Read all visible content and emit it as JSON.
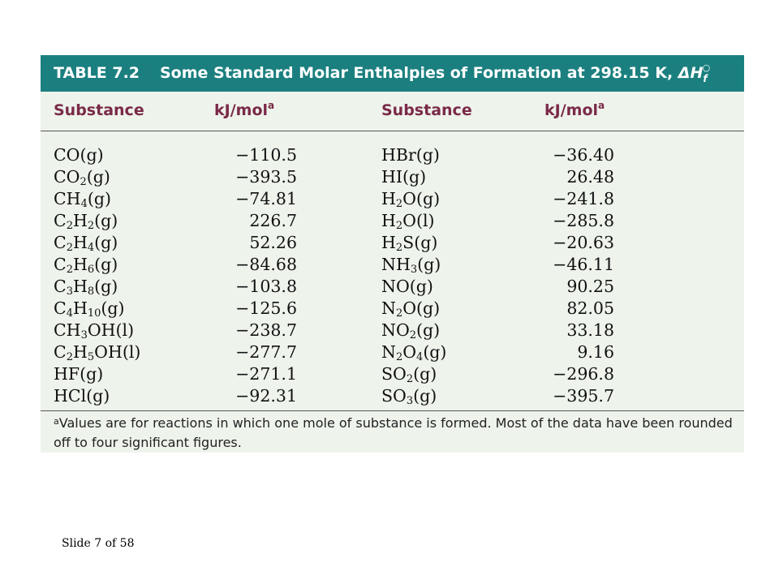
{
  "table": {
    "label": "TABLE 7.2",
    "title": "Some Standard Molar Enthalpies of Formation at 298.15 K, ",
    "title_symbol": "ΔH",
    "title_symbol_sub": "f",
    "title_symbol_sup": "○",
    "headers": {
      "substance_left": "Substance",
      "value_left": "kJ/mol",
      "value_left_sup": "a",
      "substance_right": "Substance",
      "value_right": "kJ/mol",
      "value_right_sup": "a"
    },
    "rows": [
      {
        "left": [
          {
            "t": "CO(g)"
          }
        ],
        "left_value": "−110.5",
        "right": [
          {
            "t": "HBr(g)"
          }
        ],
        "right_value": "−36.40"
      },
      {
        "left": [
          {
            "t": "CO"
          },
          {
            "s": "2"
          },
          {
            "t": "(g)"
          }
        ],
        "left_value": "−393.5",
        "right": [
          {
            "t": "HI(g)"
          }
        ],
        "right_value": "26.48"
      },
      {
        "left": [
          {
            "t": "CH"
          },
          {
            "s": "4"
          },
          {
            "t": "(g)"
          }
        ],
        "left_value": "−74.81",
        "right": [
          {
            "t": "H"
          },
          {
            "s": "2"
          },
          {
            "t": "O(g)"
          }
        ],
        "right_value": "−241.8"
      },
      {
        "left": [
          {
            "t": "C"
          },
          {
            "s": "2"
          },
          {
            "t": "H"
          },
          {
            "s": "2"
          },
          {
            "t": "(g)"
          }
        ],
        "left_value": "226.7",
        "right": [
          {
            "t": "H"
          },
          {
            "s": "2"
          },
          {
            "t": "O(l)"
          }
        ],
        "right_value": "−285.8"
      },
      {
        "left": [
          {
            "t": "C"
          },
          {
            "s": "2"
          },
          {
            "t": "H"
          },
          {
            "s": "4"
          },
          {
            "t": "(g)"
          }
        ],
        "left_value": "52.26",
        "right": [
          {
            "t": "H"
          },
          {
            "s": "2"
          },
          {
            "t": "S(g)"
          }
        ],
        "right_value": "−20.63"
      },
      {
        "left": [
          {
            "t": "C"
          },
          {
            "s": "2"
          },
          {
            "t": "H"
          },
          {
            "s": "6"
          },
          {
            "t": "(g)"
          }
        ],
        "left_value": "−84.68",
        "right": [
          {
            "t": "NH"
          },
          {
            "s": "3"
          },
          {
            "t": "(g)"
          }
        ],
        "right_value": "−46.11"
      },
      {
        "left": [
          {
            "t": "C"
          },
          {
            "s": "3"
          },
          {
            "t": "H"
          },
          {
            "s": "8"
          },
          {
            "t": "(g)"
          }
        ],
        "left_value": "−103.8",
        "right": [
          {
            "t": "NO(g)"
          }
        ],
        "right_value": "90.25"
      },
      {
        "left": [
          {
            "t": "C"
          },
          {
            "s": "4"
          },
          {
            "t": "H"
          },
          {
            "s": "10"
          },
          {
            "t": "(g)"
          }
        ],
        "left_value": "−125.6",
        "right": [
          {
            "t": "N"
          },
          {
            "s": "2"
          },
          {
            "t": "O(g)"
          }
        ],
        "right_value": "82.05"
      },
      {
        "left": [
          {
            "t": "CH"
          },
          {
            "s": "3"
          },
          {
            "t": "OH(l)"
          }
        ],
        "left_value": "−238.7",
        "right": [
          {
            "t": "NO"
          },
          {
            "s": "2"
          },
          {
            "t": "(g)"
          }
        ],
        "right_value": "33.18"
      },
      {
        "left": [
          {
            "t": "C"
          },
          {
            "s": "2"
          },
          {
            "t": "H"
          },
          {
            "s": "5"
          },
          {
            "t": "OH(l)"
          }
        ],
        "left_value": "−277.7",
        "right": [
          {
            "t": "N"
          },
          {
            "s": "2"
          },
          {
            "t": "O"
          },
          {
            "s": "4"
          },
          {
            "t": "(g)"
          }
        ],
        "right_value": "9.16"
      },
      {
        "left": [
          {
            "t": "HF(g)"
          }
        ],
        "left_value": "−271.1",
        "right": [
          {
            "t": "SO"
          },
          {
            "s": "2"
          },
          {
            "t": "(g)"
          }
        ],
        "right_value": "−296.8"
      },
      {
        "left": [
          {
            "t": "HCl(g)"
          }
        ],
        "left_value": "−92.31",
        "right": [
          {
            "t": "SO"
          },
          {
            "s": "3"
          },
          {
            "t": "(g)"
          }
        ],
        "right_value": "−395.7"
      }
    ],
    "footnote_marker": "a",
    "footnote": "Values are for reactions in which one mole of substance is formed. Most of the data have been rounded off to four significant figures."
  },
  "slide_number": "Slide 7 of 58",
  "colors": {
    "title_bar": "#1b7f7f",
    "header_text": "#7a2a48",
    "table_background": "#eef3ec"
  }
}
